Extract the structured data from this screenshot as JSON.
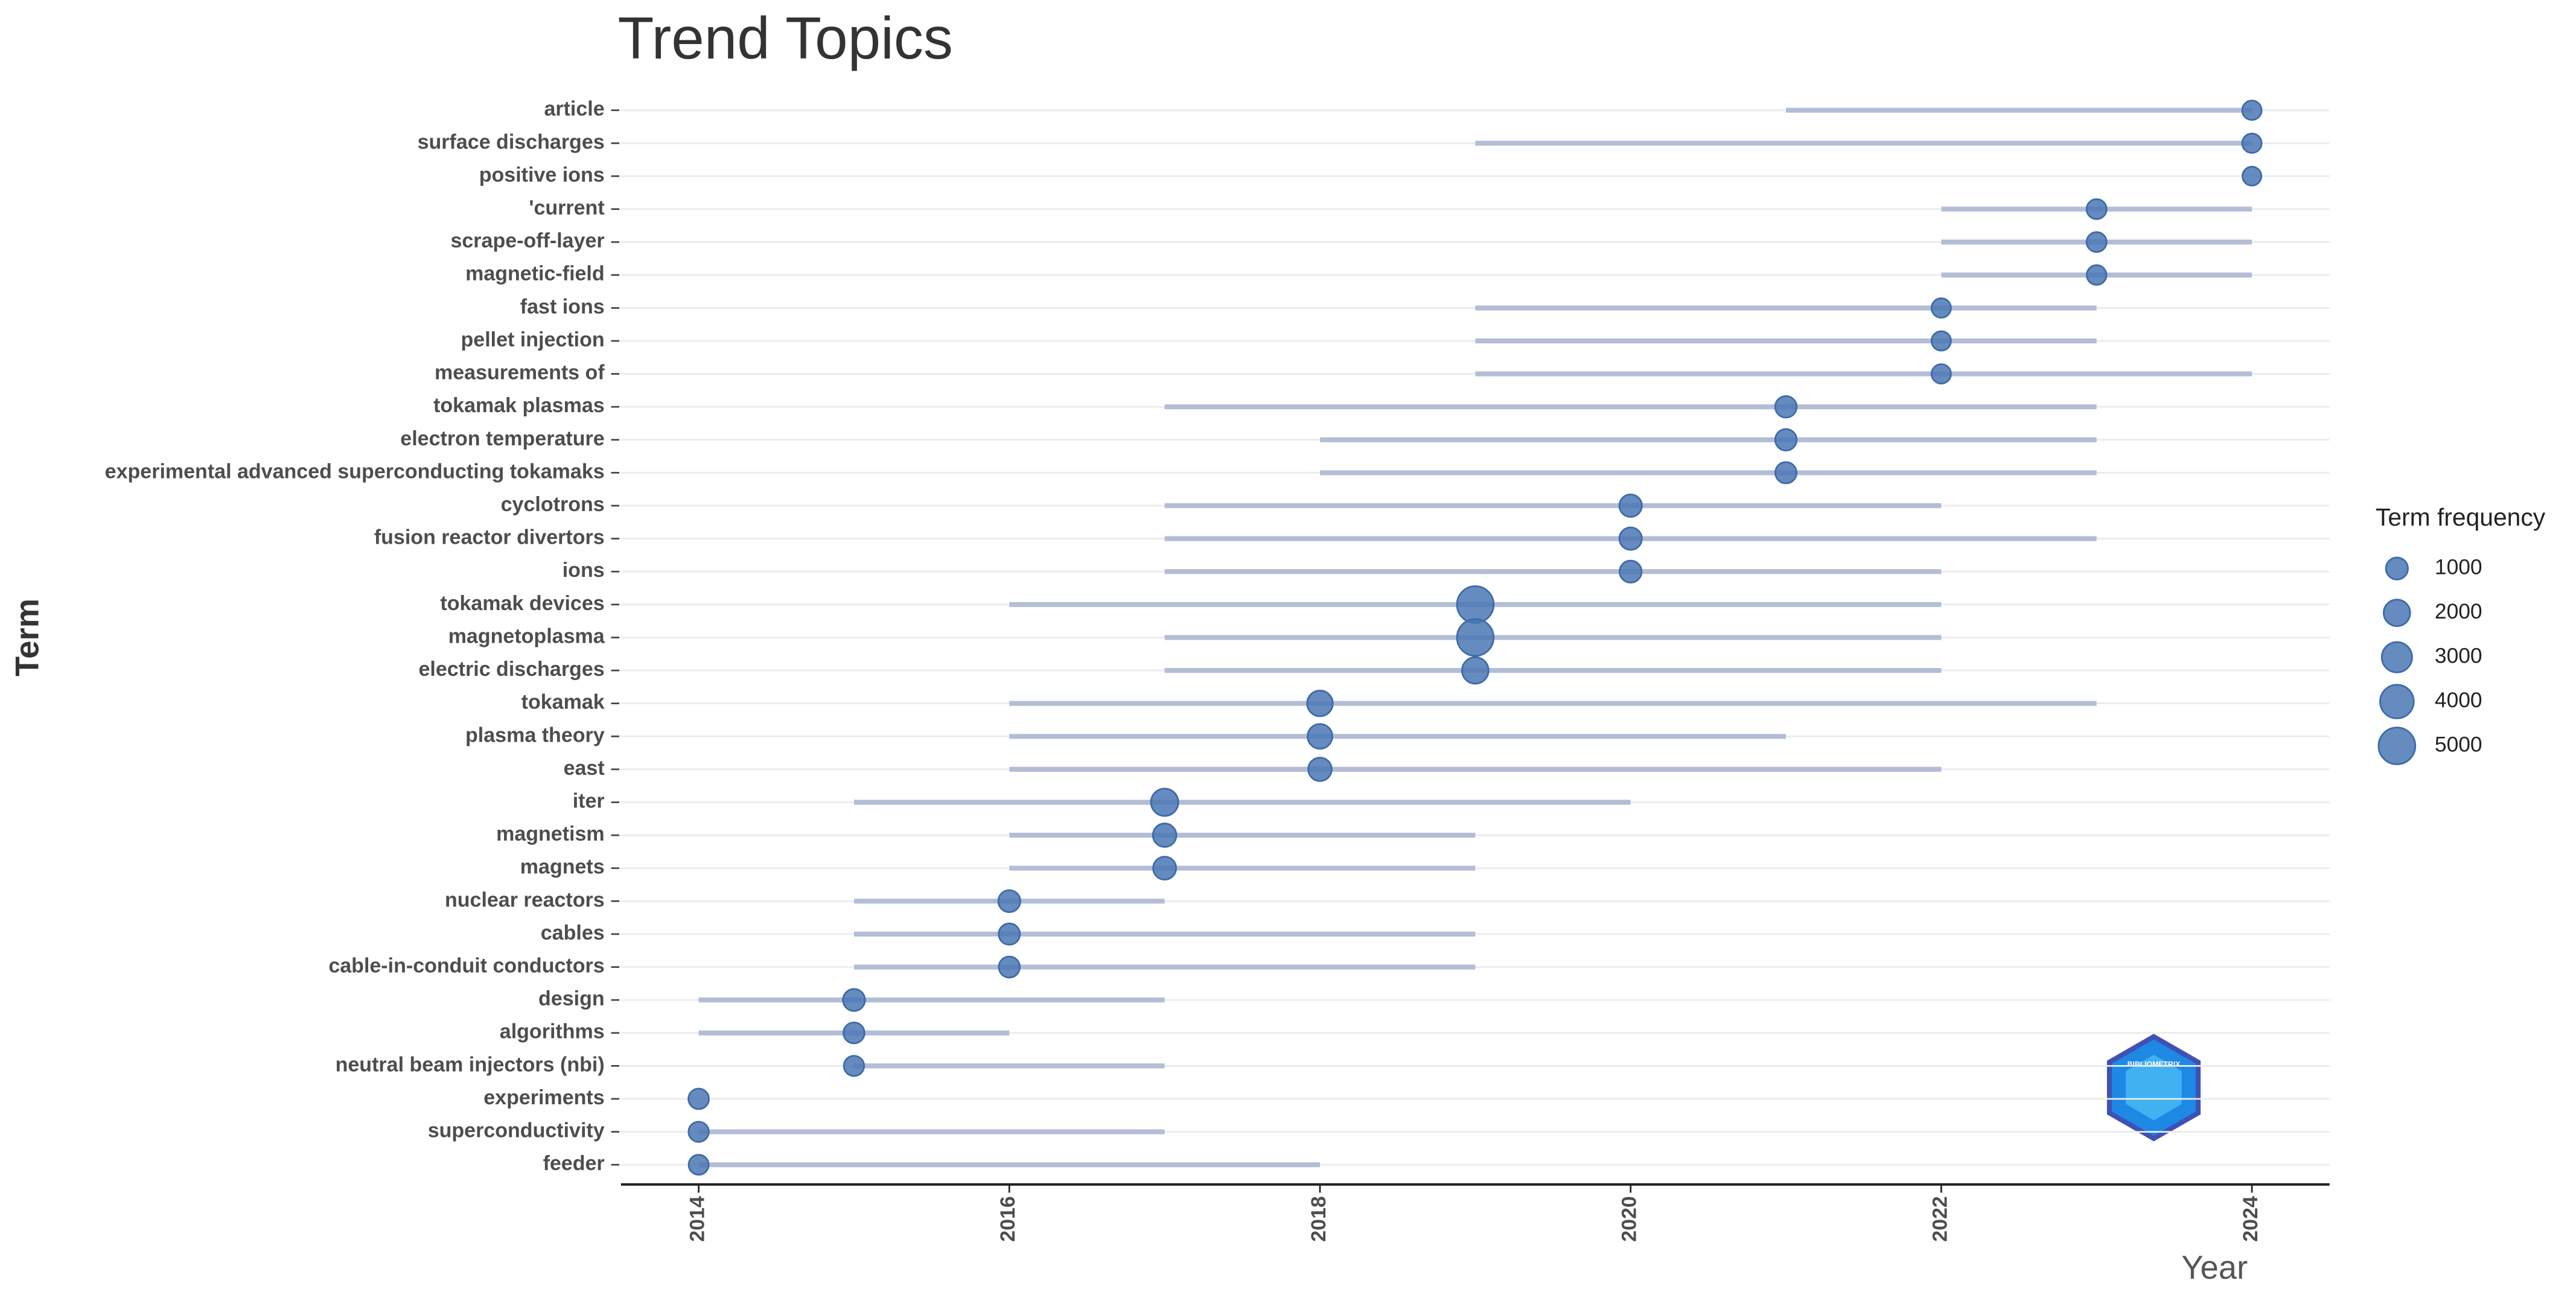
{
  "chart_data": {
    "type": "trend",
    "title": "Trend Topics",
    "y_label": "Term",
    "x_label": "Year",
    "categories": [
      "article",
      "surface discharges",
      "positive ions",
      "'current",
      "scrape-off-layer",
      "magnetic-field",
      "fast ions",
      "pellet injection",
      "measurements of",
      "tokamak plasmas",
      "electron temperature",
      "experimental advanced superconducting tokamaks",
      "cyclotrons",
      "fusion reactor divertors",
      "ions",
      "tokamak devices",
      "magnetoplasma",
      "electric discharges",
      "tokamak",
      "plasma theory",
      "east",
      "iter",
      "magnetism",
      "magnets",
      "nuclear reactors",
      "cables",
      "cable-in-conduit conductors",
      "design",
      "algorithms",
      "neutral beam injectors (nbi)",
      "experiments",
      "superconductivity",
      "feeder"
    ],
    "start": [
      2021,
      2019,
      2024,
      2022,
      2022,
      2022,
      2019,
      2019,
      2019,
      2017,
      2018,
      2018,
      2017,
      2017,
      2017,
      2016,
      2017,
      2017,
      2016,
      2016,
      2016,
      2015,
      2016,
      2016,
      2015,
      2015,
      2015,
      2014,
      2014,
      2015,
      2014,
      2014,
      2014
    ],
    "values": [
      2024,
      2024,
      2024,
      2023,
      2023,
      2023,
      2022,
      2022,
      2022,
      2021,
      2021,
      2021,
      2020,
      2020,
      2020,
      2019,
      2019,
      2019,
      2018,
      2018,
      2018,
      2017,
      2017,
      2017,
      2016,
      2016,
      2016,
      2015,
      2015,
      2015,
      2014,
      2014,
      2014
    ],
    "end": [
      2024,
      2024,
      2024,
      2024,
      2024,
      2024,
      2023,
      2023,
      2024,
      2023,
      2023,
      2023,
      2022,
      2023,
      2022,
      2022,
      2022,
      2022,
      2023,
      2021,
      2022,
      2020,
      2019,
      2019,
      2017,
      2019,
      2019,
      2017,
      2016,
      2017,
      2014,
      2017,
      2018
    ],
    "sizes": [
      500,
      500,
      400,
      600,
      600,
      550,
      500,
      500,
      500,
      900,
      900,
      850,
      1100,
      1100,
      1000,
      5000,
      5000,
      2000,
      1800,
      1600,
      1300,
      2200,
      1300,
      1200,
      1000,
      850,
      800,
      1000,
      800,
      650,
      700,
      650,
      600
    ],
    "line_color": "#b3bdd6",
    "dot_color": "#4a77b4",
    "xlim": [
      2013.5,
      2024.5
    ],
    "xticks": [
      2014,
      2016,
      2018,
      2020,
      2022,
      2024
    ],
    "grid": true,
    "size_legend": {
      "title": "Term frequency",
      "values": [
        1000,
        2000,
        3000,
        4000,
        5000
      ]
    },
    "logo_text": "BIBLIOMETRIX"
  }
}
